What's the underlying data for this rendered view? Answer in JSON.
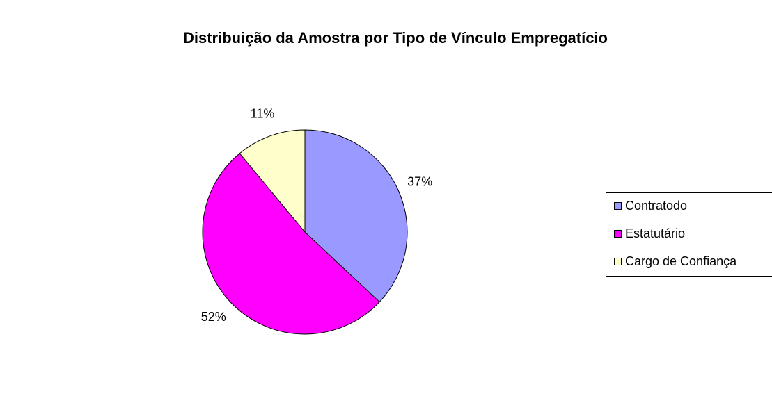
{
  "chart_data": {
    "type": "pie",
    "title": "Distribuição da Amostra por Tipo de Vínculo Empregatício",
    "categories": [
      "Contratodo",
      "Estatutário",
      "Cargo de Confiança"
    ],
    "values": [
      37,
      52,
      11
    ],
    "value_labels": [
      "37%",
      "52%",
      "11%"
    ],
    "colors": [
      "#9999ff",
      "#ff00ff",
      "#ffffcc"
    ],
    "legend": "right"
  }
}
